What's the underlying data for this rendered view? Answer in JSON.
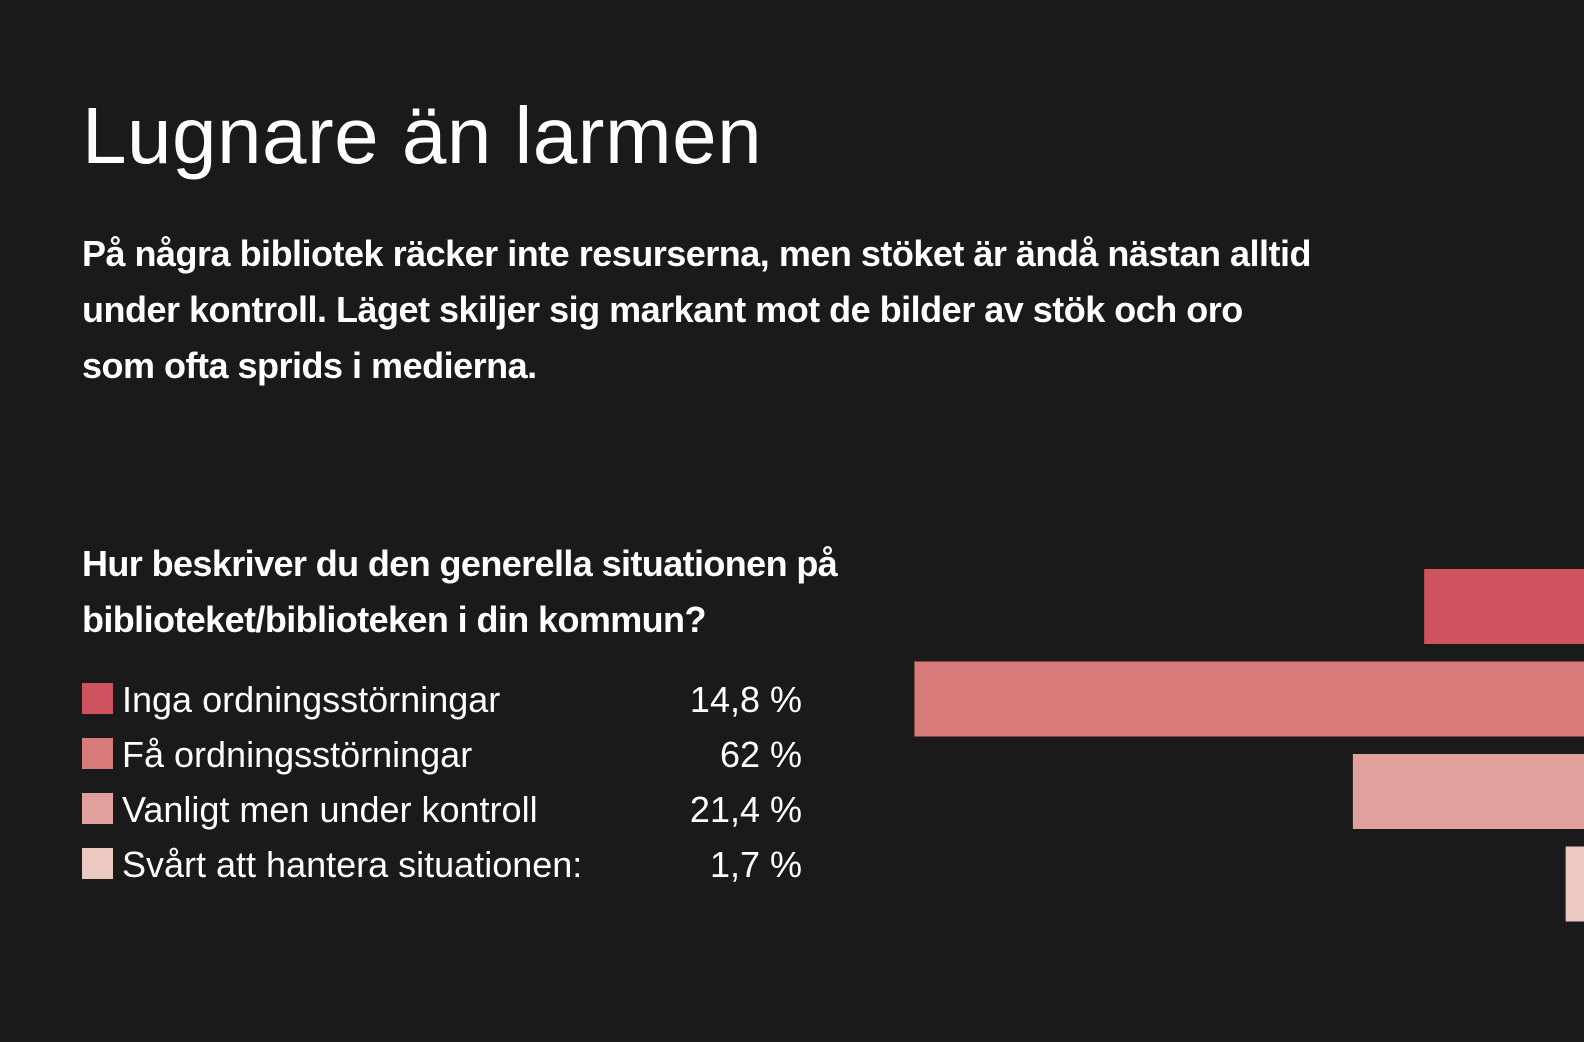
{
  "title": "Lugnare än larmen",
  "subtitle": "På några bibliotek räcker inte resurserna, men stöket är ändå nästan alltid under kontroll. Läget skiljer sig markant mot de bilder av stök och oro som ofta sprids i medierna.",
  "chart_data": {
    "type": "bar",
    "orientation": "horizontal",
    "title": "Hur beskriver du den generella situationen på biblioteket/biblioteken i din kommun?",
    "xlabel": "",
    "ylabel": "",
    "grid": false,
    "legend_position": "left",
    "unit": "%",
    "categories": [
      "Inga ordningsstörningar",
      "Få ordningsstörningar",
      "Vanligt men under kontroll",
      "Svårt att hantera situationen:"
    ],
    "values": [
      14.8,
      62,
      21.4,
      1.7
    ],
    "value_labels": [
      "14,8 %",
      "62 %",
      "21,4 %",
      "1,7 %"
    ],
    "colors": [
      "#cf535f",
      "#d87a79",
      "#e0a19c",
      "#ebc8c0"
    ]
  }
}
